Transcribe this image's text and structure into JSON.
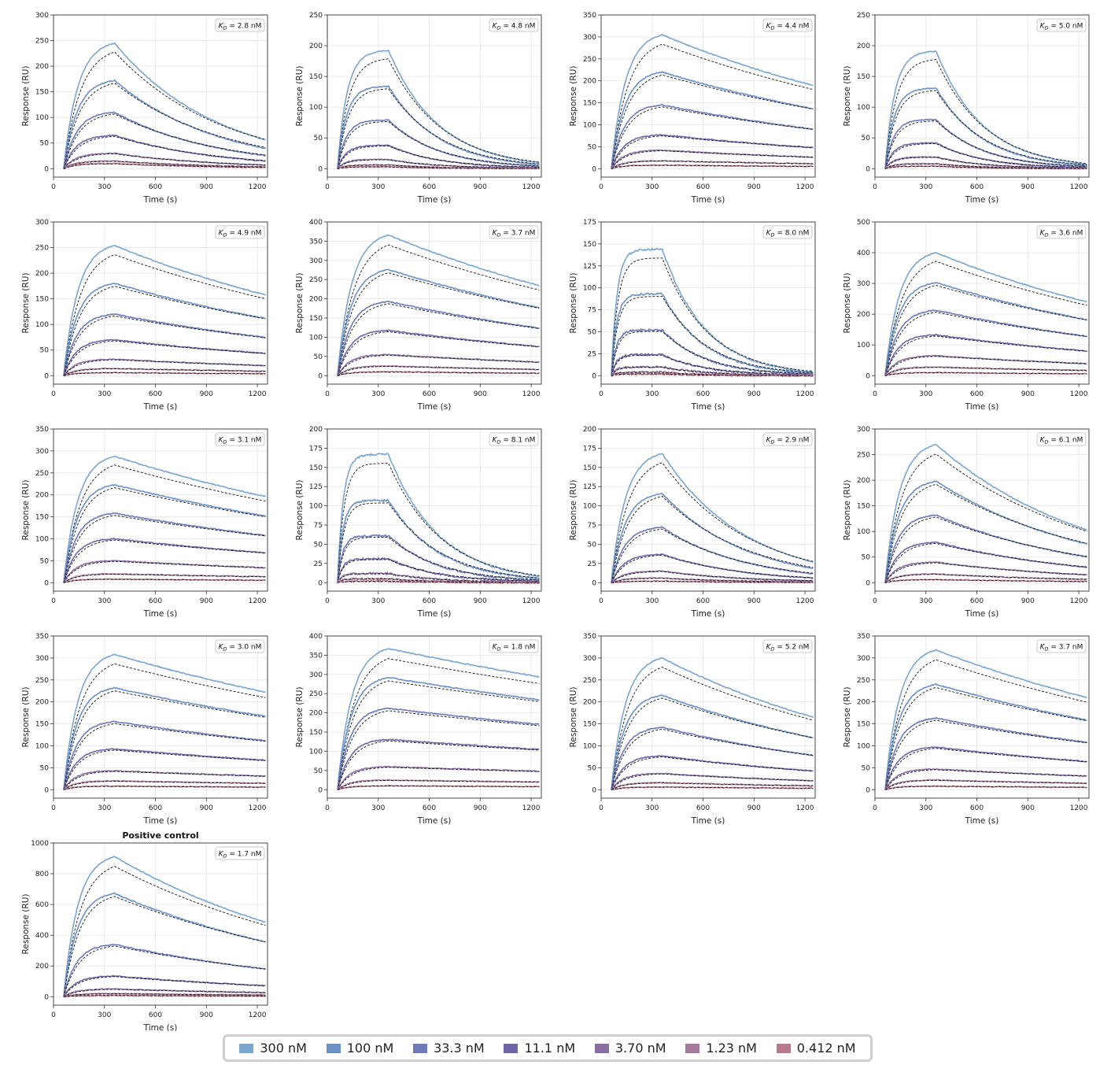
{
  "chart_data": {
    "type": "line",
    "shared": {
      "xlabel": "Time (s)",
      "ylabel": "Response (RU)",
      "xlim": [
        0,
        1260
      ],
      "xticks": [
        0,
        300,
        600,
        900,
        1200
      ],
      "grid": true,
      "kd_prefix": "K",
      "kd_sub": "D",
      "fit_style": "black dashed",
      "legend_placement": "bottom-center"
    },
    "series_meta": [
      {
        "name": "300 nM",
        "conc": 300,
        "color": "#7aa6cf"
      },
      {
        "name": "100 nM",
        "conc": 100,
        "color": "#6c91c6"
      },
      {
        "name": "33.3 nM",
        "conc": 33.3,
        "color": "#6c7ab7"
      },
      {
        "name": "11.1 nM",
        "conc": 11.1,
        "color": "#6f66a8"
      },
      {
        "name": "3.70 nM",
        "conc": 3.7,
        "color": "#8a6ea3"
      },
      {
        "name": "1.23 nM",
        "conc": 1.23,
        "color": "#a5799c"
      },
      {
        "name": "0.412 nM",
        "conc": 0.412,
        "color": "#b97a8c"
      }
    ],
    "panels": [
      {
        "kd": "= 2.8 nM",
        "ylim": [
          0,
          300
        ],
        "yticks": [
          0,
          50,
          100,
          150,
          200,
          250,
          300
        ],
        "peaks": [
          245,
          172,
          110,
          65,
          30,
          15,
          10
        ],
        "end_ratio": 0.23,
        "mode": "slow"
      },
      {
        "kd": "= 4.8 nM",
        "ylim": [
          0,
          250
        ],
        "yticks": [
          0,
          50,
          100,
          150,
          200,
          250
        ],
        "peaks": [
          192,
          134,
          79,
          38,
          15,
          6,
          3
        ],
        "end_ratio": 0.05,
        "mode": "fast"
      },
      {
        "kd": "= 4.4 nM",
        "ylim": [
          0,
          350
        ],
        "yticks": [
          0,
          50,
          100,
          150,
          200,
          250,
          300,
          350
        ],
        "peaks": [
          305,
          220,
          145,
          77,
          42,
          18,
          8
        ],
        "end_ratio": 0.62,
        "mode": "slow"
      },
      {
        "kd": "= 5.0 nM",
        "ylim": [
          0,
          250
        ],
        "yticks": [
          0,
          50,
          100,
          150,
          200,
          250
        ],
        "peaks": [
          191,
          131,
          80,
          42,
          19,
          8,
          4
        ],
        "end_ratio": 0.04,
        "mode": "fast"
      },
      {
        "kd": "= 4.9 nM",
        "ylim": [
          0,
          300
        ],
        "yticks": [
          0,
          50,
          100,
          150,
          200,
          250,
          300
        ],
        "peaks": [
          254,
          180,
          120,
          70,
          32,
          14,
          6
        ],
        "end_ratio": 0.62,
        "mode": "slow"
      },
      {
        "kd": "= 3.7 nM",
        "ylim": [
          0,
          400
        ],
        "yticks": [
          0,
          50,
          100,
          150,
          200,
          250,
          300,
          350,
          400
        ],
        "peaks": [
          366,
          276,
          193,
          118,
          55,
          25,
          10
        ],
        "end_ratio": 0.64,
        "mode": "slow"
      },
      {
        "kd": "= 8.0 nM",
        "ylim": [
          0,
          175
        ],
        "yticks": [
          0,
          25,
          50,
          75,
          100,
          125,
          150,
          175
        ],
        "peaks": [
          144,
          93,
          52,
          24,
          10,
          4,
          2
        ],
        "end_ratio": 0.03,
        "mode": "veryfast"
      },
      {
        "kd": "= 3.6 nM",
        "ylim": [
          0,
          500
        ],
        "yticks": [
          0,
          100,
          200,
          300,
          400,
          500
        ],
        "peaks": [
          400,
          303,
          213,
          133,
          65,
          28,
          10
        ],
        "end_ratio": 0.6,
        "mode": "slow"
      },
      {
        "kd": "= 3.1 nM",
        "ylim": [
          0,
          350
        ],
        "yticks": [
          0,
          50,
          100,
          150,
          200,
          250,
          300,
          350
        ],
        "peaks": [
          288,
          223,
          158,
          100,
          50,
          20,
          8
        ],
        "end_ratio": 0.68,
        "mode": "slow"
      },
      {
        "kd": "= 8.1 nM",
        "ylim": [
          0,
          200
        ],
        "yticks": [
          0,
          25,
          50,
          75,
          100,
          125,
          150,
          175,
          200
        ],
        "peaks": [
          167,
          107,
          61,
          31,
          12,
          5,
          2
        ],
        "end_ratio": 0.05,
        "mode": "veryfast"
      },
      {
        "kd": "= 2.9 nM",
        "ylim": [
          0,
          200
        ],
        "yticks": [
          0,
          25,
          50,
          75,
          100,
          125,
          150,
          175,
          200
        ],
        "peaks": [
          168,
          116,
          72,
          37,
          15,
          6,
          2
        ],
        "end_ratio": 0.16,
        "mode": "slow"
      },
      {
        "kd": "= 6.1 nM",
        "ylim": [
          0,
          300
        ],
        "yticks": [
          0,
          50,
          100,
          150,
          200,
          250,
          300
        ],
        "peaks": [
          270,
          198,
          132,
          79,
          40,
          17,
          6
        ],
        "end_ratio": 0.38,
        "mode": "slow"
      },
      {
        "kd": "= 3.0 nM",
        "ylim": [
          0,
          350
        ],
        "yticks": [
          0,
          50,
          100,
          150,
          200,
          250,
          300,
          350
        ],
        "peaks": [
          308,
          232,
          155,
          93,
          43,
          20,
          8
        ],
        "end_ratio": 0.72,
        "mode": "slow"
      },
      {
        "kd": "= 1.8 nM",
        "ylim": [
          0,
          400
        ],
        "yticks": [
          0,
          50,
          100,
          150,
          200,
          250,
          300,
          350,
          400
        ],
        "peaks": [
          367,
          292,
          212,
          131,
          60,
          25,
          10
        ],
        "end_ratio": 0.8,
        "mode": "slow"
      },
      {
        "kd": "= 5.2 nM",
        "ylim": [
          0,
          350
        ],
        "yticks": [
          0,
          50,
          100,
          150,
          200,
          250,
          300,
          350
        ],
        "peaks": [
          300,
          215,
          142,
          77,
          37,
          16,
          6
        ],
        "end_ratio": 0.55,
        "mode": "slow"
      },
      {
        "kd": "= 3.7 nM",
        "ylim": [
          0,
          350
        ],
        "yticks": [
          0,
          50,
          100,
          150,
          200,
          250,
          300,
          350
        ],
        "peaks": [
          318,
          240,
          163,
          97,
          47,
          22,
          8
        ],
        "end_ratio": 0.66,
        "mode": "slow"
      },
      {
        "title": "Positive control",
        "kd": "= 1.7 nM",
        "ylim": [
          0,
          1000
        ],
        "yticks": [
          0,
          200,
          400,
          600,
          800,
          1000
        ],
        "peaks": [
          912,
          672,
          340,
          135,
          50,
          20,
          8
        ],
        "end_ratio": 0.53,
        "mode": "slow"
      }
    ]
  }
}
